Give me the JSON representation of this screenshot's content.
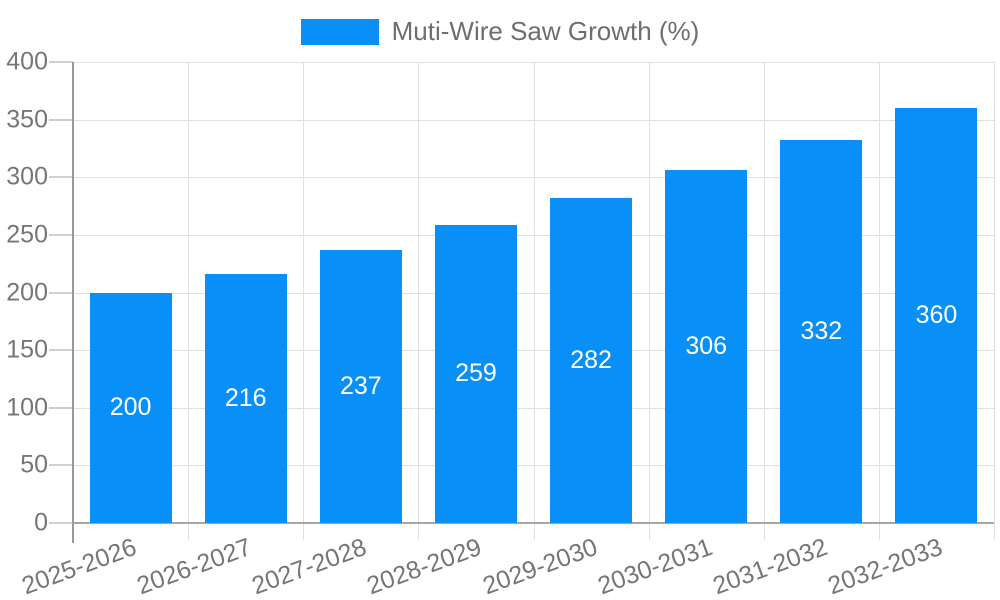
{
  "legend": {
    "label": "Muti-Wire Saw Growth (%)"
  },
  "chart_data": {
    "type": "bar",
    "categories": [
      "2025-2026",
      "2026-2027",
      "2027-2028",
      "2028-2029",
      "2029-2030",
      "2030-2031",
      "2031-2032",
      "2032-2033"
    ],
    "values": [
      200,
      216,
      237,
      259,
      282,
      306,
      332,
      360
    ],
    "series": [
      {
        "name": "Muti-Wire Saw Growth (%)",
        "values": [
          200,
          216,
          237,
          259,
          282,
          306,
          332,
          360
        ]
      }
    ],
    "ylim": [
      0,
      400
    ],
    "yticks": [
      0,
      50,
      100,
      150,
      200,
      250,
      300,
      350,
      400
    ],
    "grid": true,
    "legend_position": "top-center",
    "bar_color": "#0990f8",
    "value_label_color": "#ffffff",
    "axis_label_color": "#767676",
    "legend_text_color": "#6e6e6e"
  }
}
